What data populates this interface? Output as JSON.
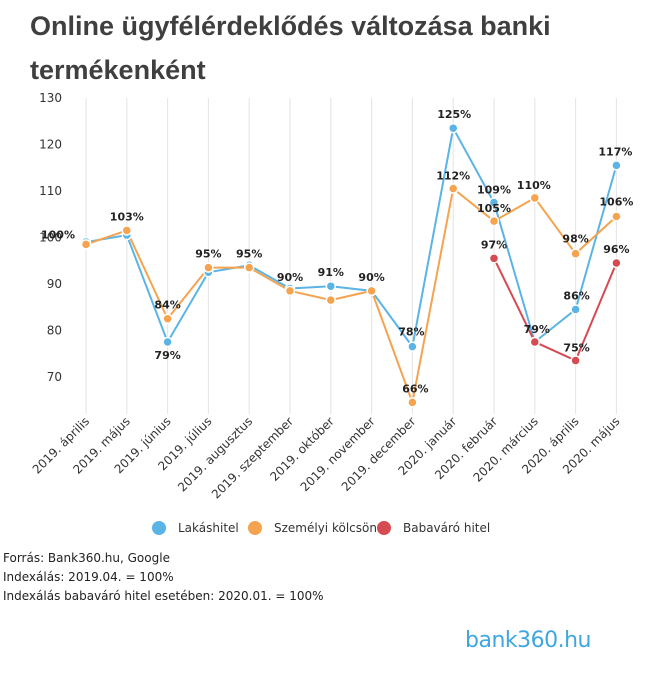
{
  "title": "Online ügyfélérdeklődés változása banki termékenként",
  "chart_data": {
    "type": "line",
    "categories": [
      "2019. április",
      "2019. május",
      "2019. június",
      "2019. július",
      "2019. augusztus",
      "2019. szeptember",
      "2019. október",
      "2019. november",
      "2019. december",
      "2020. január",
      "2020. február",
      "2020. március",
      "2020. április",
      "2020. május"
    ],
    "ylim": [
      62,
      130
    ],
    "yticks": [
      70,
      80,
      90,
      100,
      110,
      120,
      130
    ],
    "grid_x": true,
    "grid_y": false,
    "legend_position": "bottom",
    "series": [
      {
        "name": "Lakáshitel",
        "color": "#5ab4e5",
        "values": [
          99,
          100.5,
          77.5,
          92.5,
          94,
          89,
          89.5,
          88.5,
          76.5,
          123.5,
          107.5,
          77.5,
          84.5,
          115.5
        ],
        "labels": [
          "",
          "",
          "79%",
          "",
          "",
          "",
          "91%",
          "",
          "78%",
          "125%",
          "109%",
          "79%",
          "86%",
          "117%"
        ]
      },
      {
        "name": "Személyi kölcsön",
        "color": "#f5a34f",
        "values": [
          98.5,
          101.5,
          82.5,
          93.5,
          93.5,
          88.5,
          86.5,
          88.5,
          64.5,
          110.5,
          103.5,
          108.5,
          96.5,
          104.5
        ],
        "labels": [
          "100%",
          "103%",
          "84%",
          "95%",
          "95%",
          "90%",
          "",
          "90%",
          "66%",
          "112%",
          "105%",
          "110%",
          "98%",
          "106%"
        ]
      },
      {
        "name": "Babaváró hitel",
        "color": "#d64b52",
        "values": [
          null,
          null,
          null,
          null,
          null,
          null,
          null,
          null,
          null,
          null,
          95.5,
          77.5,
          73.5,
          94.5
        ],
        "labels": [
          "",
          "",
          "",
          "",
          "",
          "",
          "",
          "",
          "",
          "",
          "97%",
          "",
          "75%",
          "96%"
        ]
      }
    ]
  },
  "notes": {
    "source": "Forrás: Bank360.hu, Google",
    "index": "Indexálás: 2019.04. = 100%",
    "index_baby": "Indexálás babaváró hitel esetében: 2020.01. = 100%"
  },
  "logo": {
    "text": "bank360.hu"
  }
}
